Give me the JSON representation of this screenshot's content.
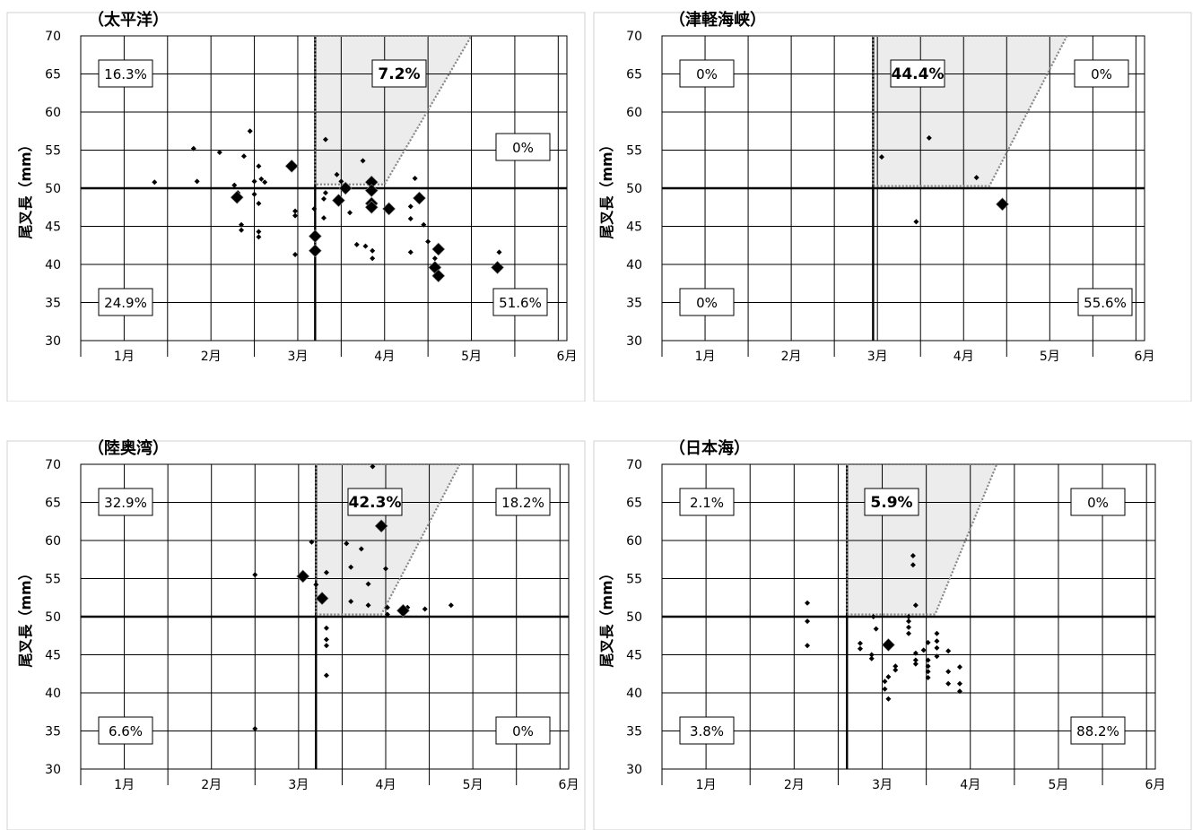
{
  "chart_data": [
    {
      "type": "scatter",
      "title": "（太平洋）",
      "ylabel": "尾叉長（mm）",
      "ylim": [
        30,
        70
      ],
      "yticks": [
        30,
        35,
        40,
        45,
        50,
        55,
        60,
        65,
        70
      ],
      "xticks": [
        "1月",
        "2月",
        "3月",
        "4月",
        "5月",
        "6月"
      ],
      "grid": true,
      "threshold_date": "3月中旬",
      "threshold_length": 50,
      "quadrant_labels": {
        "upper_left": "16.3%",
        "upper_right": "7.2%",
        "right_mid": "0%",
        "lower_left": "24.9%",
        "lower_right": "51.6%"
      },
      "highlight_polygon": [
        [
          3.2,
          70
        ],
        [
          5.0,
          70
        ],
        [
          4.0,
          50.5
        ],
        [
          3.2,
          50.5
        ]
      ],
      "points_small": [
        [
          1.35,
          50.8
        ],
        [
          1.8,
          55.2
        ],
        [
          1.84,
          50.9
        ],
        [
          2.1,
          54.7
        ],
        [
          2.45,
          57.5
        ],
        [
          2.38,
          54.2
        ],
        [
          2.27,
          50.4
        ],
        [
          2.31,
          49.4
        ],
        [
          2.35,
          45.2
        ],
        [
          2.35,
          44.5
        ],
        [
          2.55,
          52.9
        ],
        [
          2.58,
          51.2
        ],
        [
          2.62,
          50.8
        ],
        [
          2.5,
          50.9
        ],
        [
          2.5,
          49.2
        ],
        [
          2.55,
          48.0
        ],
        [
          2.55,
          44.3
        ],
        [
          2.55,
          43.6
        ],
        [
          2.97,
          47.0
        ],
        [
          2.97,
          46.4
        ],
        [
          2.97,
          41.3
        ],
        [
          3.19,
          47.3
        ],
        [
          3.32,
          56.4
        ],
        [
          3.32,
          49.4
        ],
        [
          3.3,
          48.6
        ],
        [
          3.3,
          46.1
        ],
        [
          3.45,
          51.8
        ],
        [
          3.5,
          50.9
        ],
        [
          3.6,
          46.8
        ],
        [
          3.75,
          53.6
        ],
        [
          3.68,
          42.6
        ],
        [
          3.78,
          42.4
        ],
        [
          3.86,
          41.8
        ],
        [
          3.86,
          40.8
        ],
        [
          4.35,
          51.3
        ],
        [
          4.3,
          47.6
        ],
        [
          4.3,
          46.0
        ],
        [
          4.3,
          41.6
        ],
        [
          4.45,
          45.2
        ],
        [
          4.5,
          43.0
        ],
        [
          4.58,
          40.8
        ],
        [
          5.32,
          41.6
        ]
      ],
      "points_large": [
        [
          2.3,
          48.8
        ],
        [
          2.93,
          52.9
        ],
        [
          3.2,
          43.7
        ],
        [
          3.2,
          41.8
        ],
        [
          3.47,
          48.4
        ],
        [
          3.55,
          50.0
        ],
        [
          3.85,
          50.8
        ],
        [
          3.85,
          49.7
        ],
        [
          3.85,
          48.0
        ],
        [
          3.85,
          47.5
        ],
        [
          4.05,
          47.3
        ],
        [
          4.4,
          48.7
        ],
        [
          4.62,
          42.0
        ],
        [
          4.58,
          39.6
        ],
        [
          4.62,
          38.5
        ],
        [
          5.3,
          39.6
        ]
      ]
    },
    {
      "type": "scatter",
      "title": "（津軽海峡）",
      "ylabel": "尾叉長（mm）",
      "ylim": [
        30,
        70
      ],
      "yticks": [
        30,
        35,
        40,
        45,
        50,
        55,
        60,
        65,
        70
      ],
      "xticks": [
        "1月",
        "2月",
        "3月",
        "4月",
        "5月",
        "6月"
      ],
      "grid": true,
      "threshold_date": "3月上旬",
      "threshold_length": 50,
      "quadrant_labels": {
        "upper_left": "0%",
        "upper_center": "44.4%",
        "upper_right": "0%",
        "lower_left": "0%",
        "lower_right": "55.6%"
      },
      "highlight_polygon": [
        [
          2.95,
          70
        ],
        [
          5.2,
          70
        ],
        [
          4.3,
          50.3
        ],
        [
          2.95,
          50.3
        ]
      ],
      "points_small": [
        [
          3.05,
          54.1
        ],
        [
          3.45,
          45.6
        ],
        [
          3.6,
          56.6
        ],
        [
          4.15,
          51.4
        ]
      ],
      "points_large": [
        [
          4.45,
          47.9
        ]
      ]
    },
    {
      "type": "scatter",
      "title": "（陸奥湾）",
      "ylabel": "尾叉長（mm）",
      "ylim": [
        30,
        70
      ],
      "yticks": [
        30,
        35,
        40,
        45,
        50,
        55,
        60,
        65,
        70
      ],
      "xticks": [
        "1月",
        "2月",
        "3月",
        "4月",
        "5月",
        "6月"
      ],
      "grid": true,
      "threshold_date": "3月中旬",
      "threshold_length": 50,
      "quadrant_labels": {
        "upper_left": "32.9%",
        "upper_center": "42.3%",
        "upper_right": "18.2%",
        "lower_left": "6.6%",
        "lower_right": "0%"
      },
      "highlight_polygon": [
        [
          3.2,
          70
        ],
        [
          4.85,
          70
        ],
        [
          3.95,
          50.3
        ],
        [
          3.2,
          50.3
        ]
      ],
      "points_small": [
        [
          2.5,
          55.5
        ],
        [
          2.5,
          35.3
        ],
        [
          3.2,
          54.2
        ],
        [
          3.32,
          55.8
        ],
        [
          3.32,
          48.5
        ],
        [
          3.32,
          47.0
        ],
        [
          3.32,
          46.2
        ],
        [
          3.32,
          42.3
        ],
        [
          3.15,
          59.8
        ],
        [
          3.28,
          52.5
        ],
        [
          3.55,
          59.6
        ],
        [
          3.6,
          56.5
        ],
        [
          3.6,
          52.0
        ],
        [
          3.72,
          58.9
        ],
        [
          3.8,
          54.3
        ],
        [
          3.8,
          51.5
        ],
        [
          3.85,
          69.7
        ],
        [
          4.0,
          56.3
        ],
        [
          4.02,
          51.2
        ],
        [
          4.02,
          50.3
        ],
        [
          4.25,
          51.2
        ],
        [
          4.45,
          51.0
        ],
        [
          4.75,
          51.5
        ]
      ],
      "points_large": [
        [
          3.05,
          55.3
        ],
        [
          3.27,
          52.4
        ],
        [
          3.95,
          61.9
        ],
        [
          4.2,
          50.8
        ]
      ]
    },
    {
      "type": "scatter",
      "title": "（日本海）",
      "ylabel": "尾叉長（mm）",
      "ylim": [
        30,
        70
      ],
      "yticks": [
        30,
        35,
        40,
        45,
        50,
        55,
        60,
        65,
        70
      ],
      "xticks": [
        "1月",
        "2月",
        "3月",
        "4月",
        "5月",
        "6月"
      ],
      "grid": true,
      "threshold_date": "3月上旬",
      "threshold_length": 50,
      "quadrant_labels": {
        "upper_left": "2.1%",
        "upper_center": "5.9%",
        "upper_right": "0%",
        "lower_left": "3.8%",
        "lower_right": "88.2%"
      },
      "highlight_polygon": [
        [
          2.6,
          70
        ],
        [
          4.3,
          70
        ],
        [
          3.6,
          50.3
        ],
        [
          2.6,
          50.3
        ]
      ],
      "points_small": [
        [
          2.15,
          51.8
        ],
        [
          2.15,
          49.4
        ],
        [
          2.15,
          46.2
        ],
        [
          2.75,
          46.5
        ],
        [
          2.75,
          45.8
        ],
        [
          2.88,
          45.0
        ],
        [
          2.88,
          44.5
        ],
        [
          2.9,
          50.0
        ],
        [
          2.93,
          48.4
        ],
        [
          3.03,
          41.5
        ],
        [
          3.03,
          40.5
        ],
        [
          3.07,
          39.2
        ],
        [
          3.07,
          42.1
        ],
        [
          3.15,
          43.5
        ],
        [
          3.15,
          43.0
        ],
        [
          3.3,
          50.0
        ],
        [
          3.3,
          49.4
        ],
        [
          3.3,
          48.6
        ],
        [
          3.3,
          47.8
        ],
        [
          3.35,
          58.0
        ],
        [
          3.35,
          56.8
        ],
        [
          3.38,
          51.5
        ],
        [
          3.38,
          45.2
        ],
        [
          3.38,
          44.3
        ],
        [
          3.38,
          43.8
        ],
        [
          3.47,
          45.6
        ],
        [
          3.52,
          46.6
        ],
        [
          3.52,
          44.3
        ],
        [
          3.52,
          43.5
        ],
        [
          3.52,
          42.8
        ],
        [
          3.52,
          42.0
        ],
        [
          3.62,
          47.8
        ],
        [
          3.62,
          46.8
        ],
        [
          3.62,
          45.9
        ],
        [
          3.62,
          44.8
        ],
        [
          3.75,
          45.5
        ],
        [
          3.75,
          42.8
        ],
        [
          3.75,
          41.2
        ],
        [
          3.88,
          43.4
        ],
        [
          3.88,
          41.2
        ],
        [
          3.88,
          40.2
        ]
      ],
      "points_large": [
        [
          3.07,
          46.3
        ]
      ]
    }
  ]
}
